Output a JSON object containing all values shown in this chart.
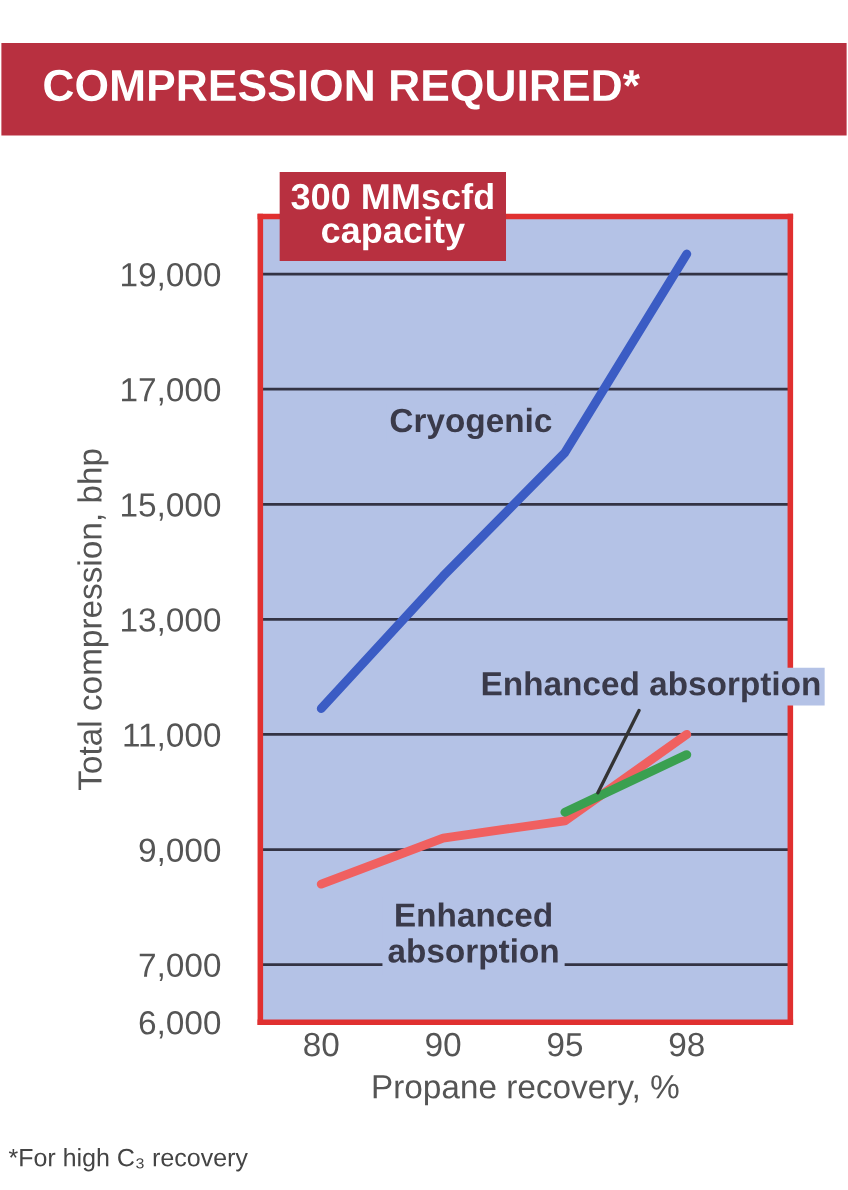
{
  "chart_data": {
    "type": "line",
    "title": "COMPRESSION REQUIRED*",
    "subtitle": "300 MMscfd\ncapacity",
    "xlabel": "Propane recovery, %",
    "ylabel": "Total compression, bhp",
    "categories": [
      "80",
      "90",
      "95",
      "98"
    ],
    "series": [
      {
        "name": "Cryogenic",
        "color": "#3b5cc4",
        "values": [
          11450,
          13750,
          15900,
          19350
        ]
      },
      {
        "name": "Enhanced absorption",
        "color": "#f06060",
        "values": [
          8400,
          9200,
          9500,
          11000
        ]
      },
      {
        "name": "Enhanced absorption",
        "color": "#3aa050",
        "values": [
          null,
          null,
          9650,
          10650
        ]
      }
    ],
    "ylim": [
      6000,
      20000
    ],
    "yticks": [
      {
        "value": 6000,
        "label": "6,000"
      },
      {
        "value": 7000,
        "label": "7,000"
      },
      {
        "value": 9000,
        "label": "9,000"
      },
      {
        "value": 11000,
        "label": "11,000"
      },
      {
        "value": 13000,
        "label": "13,000"
      },
      {
        "value": 15000,
        "label": "15,000"
      },
      {
        "value": 17000,
        "label": "17,000"
      },
      {
        "value": 19000,
        "label": "19,000"
      }
    ],
    "grid": "y",
    "legend": false,
    "marker": "none",
    "line_style": "solid",
    "annotations": [
      "*For high C₃ recovery"
    ]
  }
}
